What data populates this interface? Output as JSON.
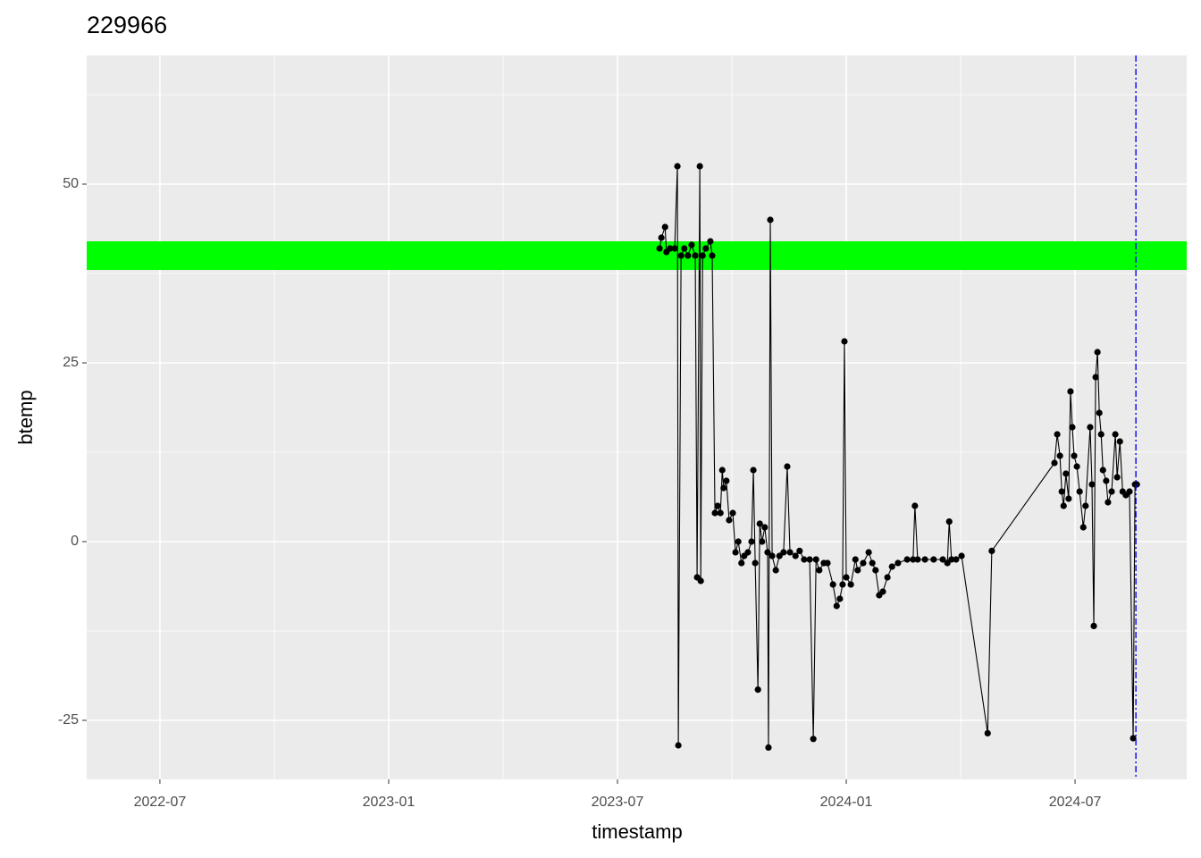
{
  "chart_data": {
    "type": "line",
    "title": "229966",
    "x_label": "timestamp",
    "y_label": "btemp",
    "xlim": [
      2022.34,
      2024.744
    ],
    "ylim": [
      -33.25,
      68
    ],
    "xticks": [
      {
        "value": 2022.5,
        "label": "2022-07"
      },
      {
        "value": 2023.0,
        "label": "2023-01"
      },
      {
        "value": 2023.5,
        "label": "2023-07"
      },
      {
        "value": 2024.0,
        "label": "2024-01"
      },
      {
        "value": 2024.5,
        "label": "2024-07"
      }
    ],
    "yticks": [
      -25,
      0,
      25,
      50
    ],
    "grid": true,
    "band": {
      "range": [
        38,
        42
      ],
      "color": "#00ff00"
    },
    "vline": {
      "x": 2024.633,
      "color": "#0000ff"
    },
    "series": [
      {
        "name": "btemp",
        "color": "#000000",
        "x": [
          2023.592,
          2023.596,
          2023.604,
          2023.607,
          2023.615,
          2023.625,
          2023.631,
          2023.633,
          2023.639,
          2023.646,
          2023.654,
          2023.662,
          2023.67,
          2023.674,
          2023.68,
          2023.682,
          2023.686,
          2023.693,
          2023.703,
          2023.707,
          2023.713,
          2023.719,
          2023.725,
          2023.729,
          2023.732,
          2023.738,
          2023.744,
          2023.752,
          2023.758,
          2023.764,
          2023.771,
          2023.777,
          2023.785,
          2023.793,
          2023.797,
          2023.801,
          2023.807,
          2023.811,
          2023.816,
          2023.822,
          2023.828,
          2023.83,
          2023.834,
          2023.838,
          2023.846,
          2023.854,
          2023.863,
          2023.871,
          2023.877,
          2023.889,
          2023.898,
          2023.908,
          2023.92,
          2023.928,
          2023.934,
          2023.941,
          2023.951,
          2023.959,
          2023.971,
          2023.979,
          2023.986,
          2023.992,
          2023.996,
          2024.0,
          2024.01,
          2024.02,
          2024.025,
          2024.037,
          2024.049,
          2024.057,
          2024.064,
          2024.072,
          2024.08,
          2024.09,
          2024.1,
          2024.113,
          2024.133,
          2024.146,
          2024.15,
          2024.156,
          2024.172,
          2024.191,
          2024.211,
          2024.221,
          2024.225,
          2024.23,
          2024.24,
          2024.252,
          2024.309,
          2024.318,
          2024.455,
          2024.461,
          2024.467,
          2024.471,
          2024.475,
          2024.48,
          2024.486,
          2024.49,
          2024.494,
          2024.498,
          2024.504,
          2024.51,
          2024.518,
          2024.523,
          2024.533,
          2024.537,
          2024.541,
          2024.545,
          2024.549,
          2024.553,
          2024.557,
          2024.561,
          2024.568,
          2024.572,
          2024.58,
          2024.588,
          2024.592,
          2024.598,
          2024.604,
          2024.611,
          2024.619,
          2024.627,
          2024.631,
          2024.635
        ],
        "values": [
          41,
          42.5,
          44,
          40.5,
          41,
          41,
          52.5,
          -28.5,
          40,
          41,
          40,
          41.5,
          40,
          -5,
          52.5,
          -5.5,
          40,
          41,
          42,
          40,
          4,
          5,
          4,
          10,
          7.5,
          8.5,
          3,
          4,
          -1.5,
          0,
          -3,
          -2,
          -1.5,
          0,
          10,
          -3,
          -20.7,
          2.5,
          0,
          2,
          -1.5,
          -28.8,
          45,
          -2,
          -4,
          -2,
          -1.5,
          10.5,
          -1.5,
          -2,
          -1.3,
          -2.5,
          -2.5,
          -27.6,
          -2.5,
          -4,
          -3,
          -3,
          -6,
          -9,
          -8,
          -6,
          28,
          -5,
          -6,
          -2.5,
          -4,
          -3,
          -1.5,
          -3,
          -4,
          -7.5,
          -7,
          -5,
          -3.5,
          -3,
          -2.5,
          -2.5,
          5,
          -2.5,
          -2.5,
          -2.5,
          -2.5,
          -3,
          2.8,
          -2.5,
          -2.5,
          -2,
          -26.8,
          -1.3,
          11,
          15,
          12,
          7,
          5,
          9.5,
          6,
          21,
          16,
          12,
          10.5,
          7,
          2,
          5,
          16,
          8,
          -11.8,
          23,
          26.5,
          18,
          15,
          10,
          8.5,
          5.5,
          7,
          15,
          9,
          14,
          7,
          6.5,
          7,
          -27.5,
          8,
          8
        ]
      }
    ]
  }
}
